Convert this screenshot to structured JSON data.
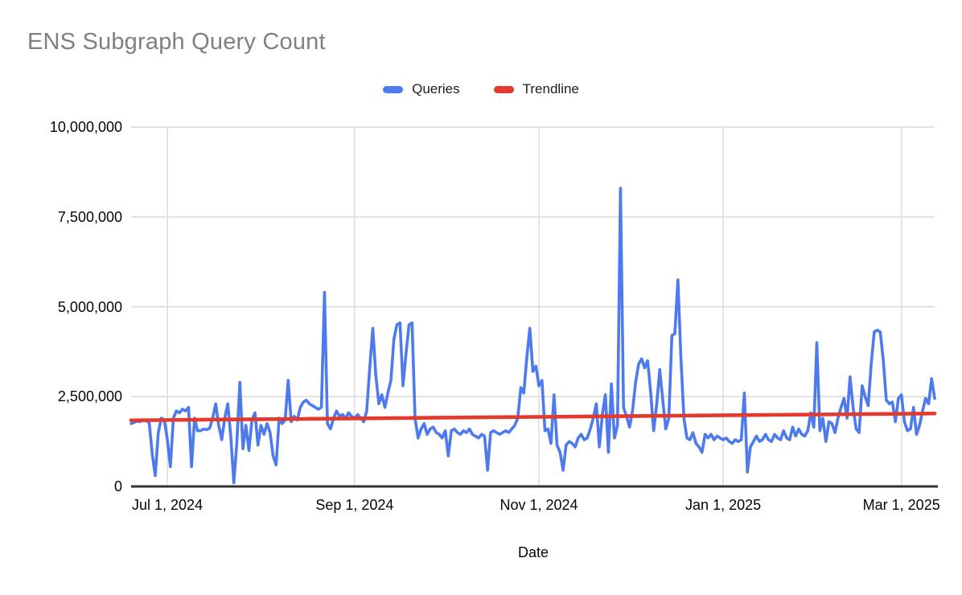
{
  "page": {
    "background": "#ffffff"
  },
  "header": {
    "title": "ENS Subgraph Query Count",
    "title_color": "#808080"
  },
  "legend": {
    "position": "top-center",
    "items": [
      {
        "label": "Queries",
        "color": "#4d7aed"
      },
      {
        "label": "Trendline",
        "color": "#e23a2c"
      }
    ]
  },
  "x_axis": {
    "title": "Date"
  },
  "chart_data": {
    "type": "line",
    "title": "ENS Subgraph Query Count",
    "xlabel": "Date",
    "ylabel": "",
    "grid": true,
    "legend_position": "top-center",
    "ylim": [
      0,
      10000000
    ],
    "y_tick_values": [
      0,
      2500000,
      5000000,
      7500000,
      10000000
    ],
    "y_tick_labels": [
      "0",
      "2,500,000",
      "5,000,000",
      "7,500,000",
      "10,000,000"
    ],
    "x_tick_labels": [
      "Jul 1, 2024",
      "Sep 1, 2024",
      "Nov 1, 2024",
      "Jan 1, 2025",
      "Mar 1, 2025"
    ],
    "x_tick_day_index": [
      12,
      74,
      135,
      196,
      255
    ],
    "series": [
      {
        "name": "Queries",
        "color": "#4d7aed",
        "frequency": "daily",
        "start_date": "Jun 19, 2024",
        "end_date": "Mar 12, 2025",
        "unit": "queries per day",
        "note": "values estimated from chart, in millions of queries",
        "values_millions": [
          1.75,
          1.78,
          1.82,
          1.8,
          1.85,
          1.82,
          1.78,
          0.9,
          0.3,
          1.5,
          1.9,
          1.85,
          1.3,
          0.55,
          1.9,
          2.1,
          2.05,
          2.15,
          2.1,
          2.2,
          0.55,
          1.9,
          1.55,
          1.55,
          1.6,
          1.58,
          1.62,
          1.9,
          2.3,
          1.7,
          1.3,
          1.9,
          2.3,
          1.4,
          0.1,
          1.2,
          2.9,
          1.05,
          1.7,
          1.0,
          1.85,
          2.05,
          1.15,
          1.7,
          1.45,
          1.75,
          1.5,
          0.85,
          0.6,
          1.9,
          1.75,
          1.85,
          2.95,
          1.8,
          1.95,
          1.85,
          2.2,
          2.35,
          2.4,
          2.3,
          2.25,
          2.2,
          2.15,
          2.2,
          5.4,
          1.75,
          1.6,
          1.9,
          2.1,
          1.95,
          2.0,
          1.9,
          2.05,
          1.95,
          1.9,
          2.0,
          1.9,
          1.8,
          2.1,
          3.3,
          4.4,
          3.1,
          2.3,
          2.55,
          2.2,
          2.6,
          2.95,
          4.1,
          4.5,
          4.55,
          2.8,
          3.7,
          4.5,
          4.55,
          1.9,
          1.35,
          1.6,
          1.75,
          1.45,
          1.6,
          1.65,
          1.5,
          1.45,
          1.35,
          1.55,
          0.85,
          1.55,
          1.6,
          1.5,
          1.45,
          1.55,
          1.5,
          1.6,
          1.45,
          1.4,
          1.35,
          1.45,
          1.4,
          0.45,
          1.5,
          1.55,
          1.5,
          1.45,
          1.5,
          1.55,
          1.5,
          1.6,
          1.7,
          1.9,
          2.75,
          2.6,
          3.6,
          4.4,
          3.2,
          3.35,
          2.8,
          2.95,
          1.55,
          1.6,
          1.2,
          2.55,
          1.15,
          0.95,
          0.45,
          1.15,
          1.25,
          1.2,
          1.1,
          1.35,
          1.45,
          1.3,
          1.35,
          1.6,
          1.9,
          2.3,
          1.1,
          2.0,
          2.55,
          0.95,
          2.85,
          1.35,
          1.7,
          8.3,
          2.2,
          1.95,
          1.65,
          2.1,
          2.9,
          3.4,
          3.55,
          3.3,
          3.5,
          2.6,
          1.55,
          2.3,
          3.25,
          2.4,
          1.6,
          1.9,
          4.2,
          4.25,
          5.75,
          3.6,
          1.9,
          1.35,
          1.3,
          1.5,
          1.2,
          1.1,
          0.95,
          1.45,
          1.35,
          1.45,
          1.3,
          1.4,
          1.35,
          1.3,
          1.35,
          1.25,
          1.2,
          1.3,
          1.25,
          1.3,
          2.6,
          0.4,
          1.1,
          1.25,
          1.4,
          1.25,
          1.3,
          1.45,
          1.3,
          1.25,
          1.45,
          1.35,
          1.3,
          1.55,
          1.35,
          1.3,
          1.65,
          1.4,
          1.6,
          1.45,
          1.4,
          1.55,
          2.05,
          1.65,
          4.0,
          1.55,
          1.9,
          1.25,
          1.8,
          1.75,
          1.5,
          1.9,
          2.2,
          2.45,
          1.9,
          3.05,
          2.2,
          1.6,
          1.5,
          2.8,
          2.5,
          2.25,
          3.4,
          4.3,
          4.35,
          4.3,
          3.5,
          2.4,
          2.3,
          2.35,
          1.8,
          2.45,
          2.55,
          1.8,
          1.55,
          1.6,
          2.2,
          1.45,
          1.7,
          2.1,
          2.45,
          2.3,
          3.0,
          2.45
        ]
      },
      {
        "name": "Trendline",
        "color": "#e23a2c",
        "style": "linear",
        "start_value_millions": 1.84,
        "end_value_millions": 2.03
      }
    ]
  }
}
